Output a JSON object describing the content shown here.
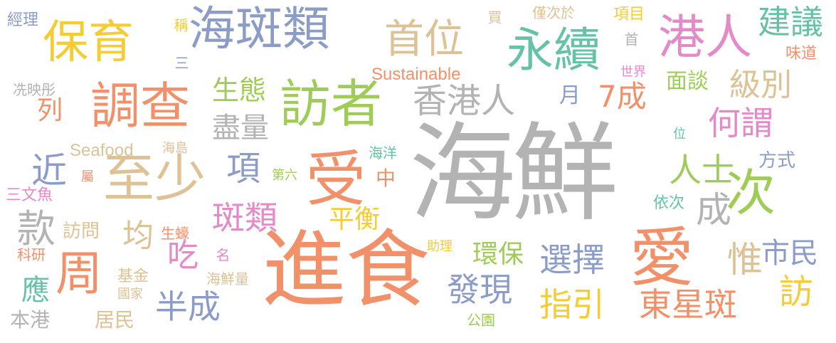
{
  "colors": {
    "gray": "#b3b3b3",
    "blue": "#8c9cc8",
    "orange": "#f2906a",
    "green": "#9fcc57",
    "yellow": "#f5cc33",
    "tan": "#dcc295",
    "pink": "#e58ac9",
    "teal": "#66c2a5"
  },
  "words": {
    "haixian": "海鮮",
    "jinshi": "進食",
    "ai1": "愛",
    "shou": "受",
    "zhishao": "至少",
    "fangzhe": "訪者",
    "diaocha": "調查",
    "baoyu": "保育",
    "haibanlei": "海斑類",
    "yongxu": "永續",
    "gangren": "港人",
    "shouwei": "首位",
    "xianggangren": "香港人",
    "ci": "次",
    "zhou": "周",
    "banlei": "斑類",
    "xiang": "項",
    "kuan": "款",
    "jin": "近",
    "bancheng": "半成",
    "xuanze": "選擇",
    "faxian": "發現",
    "zhiyin": "指引",
    "dongxingban": "東星斑",
    "rensi": "人士",
    "cheng": "成",
    "hewei": "何謂",
    "jibie": "級別",
    "qicheng": "7成",
    "jianyi": "建議",
    "mientan": "面談",
    "jinliang": "盡量",
    "shengtai": "生態",
    "pingheng": "平衡",
    "huanbao": "環保",
    "shimin": "市民",
    "wei": "惟",
    "fang": "訪",
    "chi": "吃",
    "jun": "均",
    "ying": "應",
    "lie": "列",
    "yue": "月",
    "fangwen": "訪問",
    "zhong": "中",
    "fangshi": "方式",
    "yici": "依次",
    "sustainable": "Sustainable",
    "seafood": "Seafood",
    "jingli": "經理",
    "cheng2": "稱",
    "san": "三",
    "xianyingxing": "冼映彤",
    "mai": "買",
    "jincium": "僅次於",
    "xiangmu": "項目",
    "shou2": "首",
    "weidao": "味道",
    "shijie": "世界",
    "weizhi": "位",
    "haidao": "海島",
    "haiyang": "海洋",
    "diliu": "第六",
    "shu": "屬",
    "sanwenyu": "三文魚",
    "shenghao": "生蠔",
    "ming": "名",
    "zhuli": "助理",
    "keyan": "科研",
    "jijin": "基金",
    "haixianliang": "海鮮量",
    "guojia": "國家",
    "bengang": "本港",
    "jumin": "居民",
    "gongyuan": "公園"
  }
}
